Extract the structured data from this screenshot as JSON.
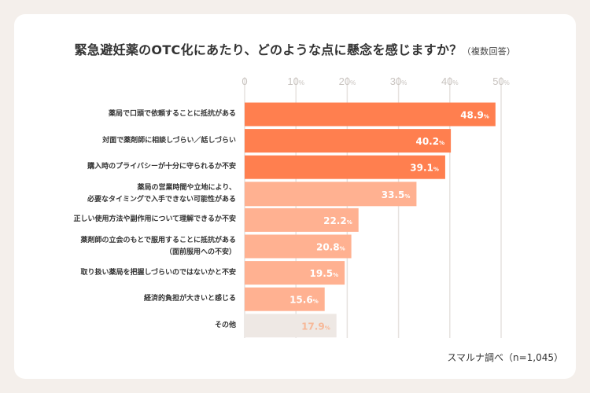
{
  "title": "緊急避妊薬のOTC化にあたり、どのような点に懸念を感じますか？",
  "subtitle": "（複数回答）",
  "source": "スマルナ調べ（n=1,045）",
  "colors": {
    "high": "#ff7f4f",
    "mid": "#ffb191",
    "other": "#eee8e4",
    "other_text": "#f7b898",
    "background": "#f4efeb",
    "grid": "#e6e2df"
  },
  "chart_data": {
    "type": "bar",
    "orientation": "horizontal",
    "title": "緊急避妊薬のOTC化にあたり、どのような点に懸念を感じますか？（複数回答）",
    "xlim": [
      0,
      50
    ],
    "x_ticks": [
      "0",
      "10%",
      "20%",
      "30%",
      "40%",
      "50%"
    ],
    "x_tick_values": [
      0,
      10,
      20,
      30,
      40,
      50
    ],
    "grid": true,
    "unit": "%",
    "categories": [
      "薬局で口頭で依頼することに抵抗がある",
      "対面で薬剤師に相談しづらい／話しづらい",
      "購入時のプライバシーが十分に守られるか不安",
      "薬局の営業時間や立地により、\n必要なタイミングで入手できない可能性がある",
      "正しい使用方法や副作用について理解できるか不安",
      "薬剤師の立会のもとで服用することに抵抗がある\n（面前服用への不安）",
      "取り扱い薬局を把握しづらいのではないかと不安",
      "経済的負担が大きいと感じる",
      "その他"
    ],
    "values": [
      48.9,
      40.2,
      39.1,
      33.5,
      22.2,
      20.8,
      19.5,
      15.6,
      17.9
    ],
    "value_labels": [
      "48.9%",
      "40.2%",
      "39.1%",
      "33.5%",
      "22.2%",
      "20.8%",
      "19.5%",
      "15.6%",
      "17.9%"
    ],
    "color_groups": [
      "high",
      "high",
      "high",
      "mid",
      "mid",
      "mid",
      "mid",
      "mid",
      "other"
    ]
  }
}
